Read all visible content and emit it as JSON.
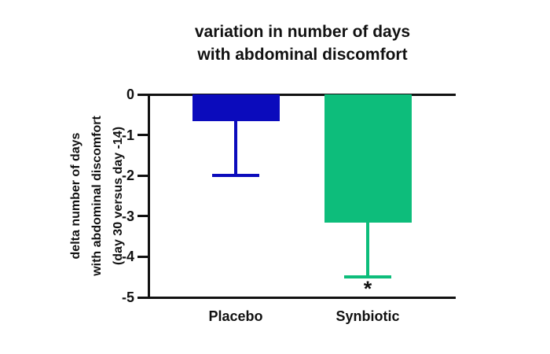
{
  "page": {
    "background_color": "#ffffff"
  },
  "chart_data": {
    "type": "bar",
    "title": "variation in number of days with abdominal discomfort",
    "title_lines": [
      "variation in number of days",
      "with abdominal discomfort"
    ],
    "ylabel": "delta number of days with abdominal discomfort (day 30 versus day -14)",
    "ylabel_lines": [
      "delta number of days",
      "with abdominal discomfort",
      "(day 30 versus day -14)"
    ],
    "xlabel": "",
    "categories": [
      "Placebo",
      "Synbiotic"
    ],
    "values": [
      -0.65,
      -3.15
    ],
    "error_bar_ends": [
      -2.0,
      -4.5
    ],
    "significance_markers": [
      "",
      "*"
    ],
    "bar_colors": [
      "#0b0bbc",
      "#0dbd7b"
    ],
    "ylim": [
      -5,
      0
    ],
    "yticks": [
      0,
      -1,
      -2,
      -3,
      -4,
      -5
    ],
    "grid": false,
    "legend": "none",
    "axis_color": "#111111",
    "text_color": "#111111"
  }
}
